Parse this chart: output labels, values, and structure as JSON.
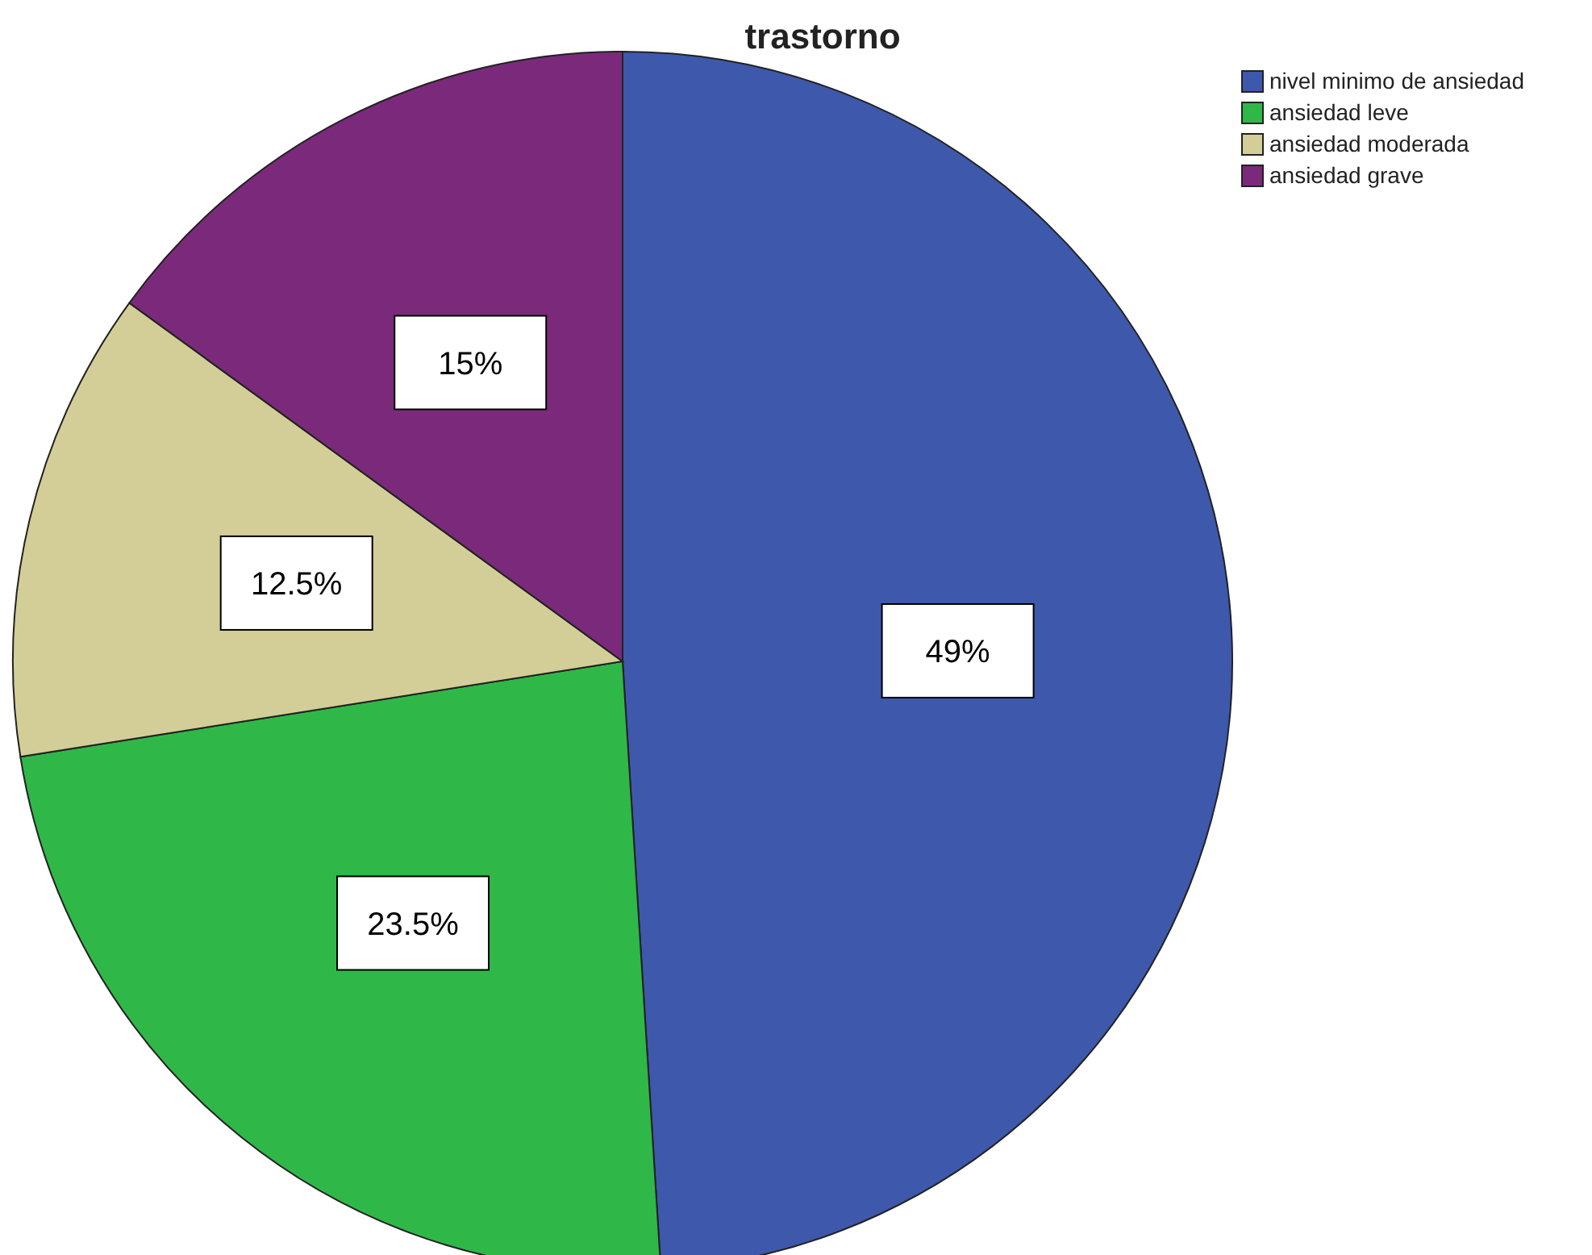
{
  "chart_data": {
    "type": "pie",
    "title": "trastorno",
    "categories": [
      "nivel minimo de ansiedad",
      "ansiedad leve",
      "ansiedad moderada",
      "ansiedad grave"
    ],
    "values": [
      49,
      23.5,
      12.5,
      15
    ],
    "colors": [
      "#3e58ac",
      "#2fb848",
      "#d3ce97",
      "#7b2a7b"
    ],
    "value_labels": [
      "49%",
      "23.5%",
      "12.5%",
      "15%"
    ],
    "legend": "top right"
  }
}
